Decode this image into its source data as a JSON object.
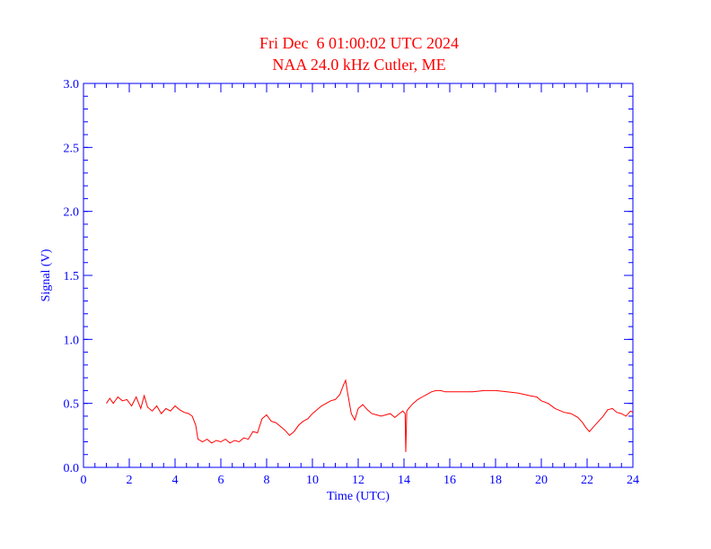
{
  "chart_data": {
    "type": "line",
    "title": "Fri Dec  6 01:00:02 UTC 2024",
    "subtitle": "NAA 24.0 kHz Cutler, ME",
    "xlabel": "Time (UTC)",
    "ylabel": "Signal (V)",
    "xlim": [
      0,
      24
    ],
    "ylim": [
      0,
      3.0
    ],
    "xticks": [
      0,
      2,
      4,
      6,
      8,
      10,
      12,
      14,
      16,
      18,
      20,
      22,
      24
    ],
    "xtick_labels": [
      "0",
      "2",
      "4",
      "6",
      "8",
      "10",
      "12",
      "14",
      "16",
      "18",
      "20",
      "22",
      "24"
    ],
    "yticks": [
      0,
      0.5,
      1.0,
      1.5,
      2.0,
      2.5,
      3.0
    ],
    "ytick_labels": [
      "0.0",
      "0.5",
      "1.0",
      "1.5",
      "2.0",
      "2.5",
      "3.0"
    ],
    "grid": false,
    "colors": {
      "axis": "#0000ff",
      "title": "#ff0000",
      "series": "#ff0000"
    },
    "series": [
      {
        "x": [
          1.0,
          1.15,
          1.3,
          1.5,
          1.7,
          1.9,
          2.1,
          2.3,
          2.5,
          2.65,
          2.8,
          3.0,
          3.2,
          3.4,
          3.6,
          3.8,
          4.0,
          4.2,
          4.4,
          4.6,
          4.75,
          4.9,
          5.0,
          5.2,
          5.4,
          5.6,
          5.8,
          6.0,
          6.2,
          6.4,
          6.6,
          6.8,
          7.0,
          7.2,
          7.4,
          7.6,
          7.8,
          8.0,
          8.2,
          8.4,
          8.6,
          8.8,
          9.0,
          9.2,
          9.4,
          9.6,
          9.8,
          10.0,
          10.2,
          10.4,
          10.6,
          10.8,
          11.0,
          11.2,
          11.35,
          11.45,
          11.55,
          11.7,
          11.85,
          12.0,
          12.2,
          12.4,
          12.6,
          12.8,
          13.0,
          13.2,
          13.4,
          13.6,
          13.8,
          13.95,
          14.05,
          14.08,
          14.12,
          14.2,
          14.4,
          14.6,
          14.8,
          15.0,
          15.2,
          15.4,
          15.6,
          15.8,
          16.0,
          16.5,
          17.0,
          17.5,
          18.0,
          18.5,
          19.0,
          19.5,
          19.8,
          20.0,
          20.3,
          20.6,
          21.0,
          21.3,
          21.6,
          21.8,
          21.95,
          22.1,
          22.3,
          22.5,
          22.7,
          22.9,
          23.1,
          23.3,
          23.5,
          23.7,
          23.9,
          24.0
        ],
        "values": [
          0.5,
          0.54,
          0.5,
          0.55,
          0.52,
          0.53,
          0.48,
          0.55,
          0.46,
          0.56,
          0.47,
          0.44,
          0.48,
          0.42,
          0.46,
          0.44,
          0.48,
          0.45,
          0.43,
          0.42,
          0.4,
          0.33,
          0.22,
          0.2,
          0.22,
          0.19,
          0.21,
          0.2,
          0.22,
          0.19,
          0.21,
          0.2,
          0.23,
          0.22,
          0.28,
          0.27,
          0.38,
          0.41,
          0.36,
          0.35,
          0.32,
          0.29,
          0.25,
          0.28,
          0.33,
          0.36,
          0.38,
          0.42,
          0.45,
          0.48,
          0.5,
          0.52,
          0.53,
          0.57,
          0.64,
          0.68,
          0.57,
          0.42,
          0.37,
          0.46,
          0.49,
          0.45,
          0.42,
          0.41,
          0.4,
          0.41,
          0.42,
          0.39,
          0.42,
          0.44,
          0.42,
          0.12,
          0.44,
          0.46,
          0.5,
          0.53,
          0.55,
          0.57,
          0.59,
          0.6,
          0.6,
          0.59,
          0.59,
          0.59,
          0.59,
          0.6,
          0.6,
          0.59,
          0.58,
          0.56,
          0.55,
          0.52,
          0.5,
          0.46,
          0.43,
          0.42,
          0.39,
          0.35,
          0.31,
          0.28,
          0.32,
          0.36,
          0.4,
          0.45,
          0.46,
          0.43,
          0.42,
          0.4,
          0.44,
          0.43
        ]
      }
    ]
  }
}
